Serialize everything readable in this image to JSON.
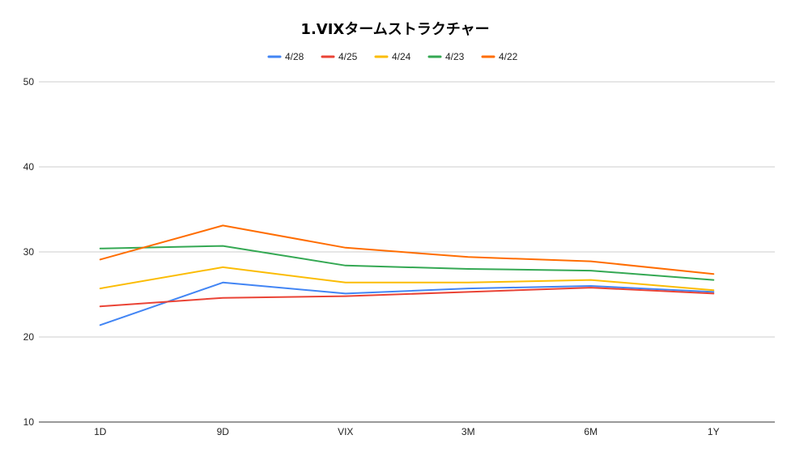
{
  "chart_data": {
    "type": "line",
    "title": "1.VIXタームストラクチャー",
    "xlabel": "",
    "ylabel": "",
    "categories": [
      "1D",
      "9D",
      "VIX",
      "3M",
      "6M",
      "1Y"
    ],
    "ylim": [
      10,
      50
    ],
    "yticks": [
      10,
      20,
      30,
      40,
      50
    ],
    "grid": true,
    "legend_position": "top",
    "series": [
      {
        "name": "4/28",
        "color": "#4285f4",
        "values": [
          21.4,
          26.4,
          25.1,
          25.7,
          26.0,
          25.3
        ]
      },
      {
        "name": "4/25",
        "color": "#ea4335",
        "values": [
          23.6,
          24.6,
          24.8,
          25.3,
          25.8,
          25.1
        ]
      },
      {
        "name": "4/24",
        "color": "#fbbc04",
        "values": [
          25.7,
          28.2,
          26.4,
          26.4,
          26.7,
          25.5
        ]
      },
      {
        "name": "4/23",
        "color": "#34a853",
        "values": [
          30.4,
          30.7,
          28.4,
          28.0,
          27.8,
          26.7
        ]
      },
      {
        "name": "4/22",
        "color": "#ff6d01",
        "values": [
          29.1,
          33.1,
          30.5,
          29.4,
          28.9,
          27.4
        ]
      }
    ]
  }
}
